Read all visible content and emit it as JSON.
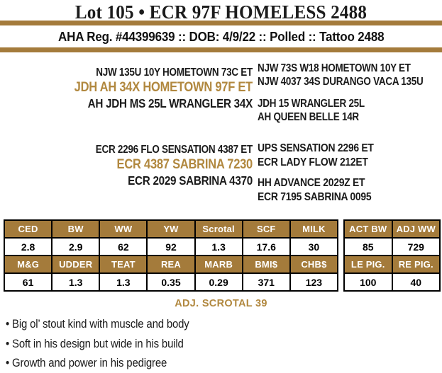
{
  "header": {
    "title": "Lot 105 • ECR 97F HOMELESS 2488",
    "reg_line": "AHA Reg. #44399639 :: DOB: 4/9/22 :: Polled :: Tattoo 2488"
  },
  "colors": {
    "accent_gold": "#a47b3b",
    "gold_text": "#b1883f",
    "table_border": "#000000",
    "header_text_on_gold": "#ffffff"
  },
  "pedigree": {
    "sire_group": {
      "grandsire_line": "NJW 135U 10Y HOMETOWN 73C ET",
      "name": "JDH AH 34X HOMETOWN 97F ET",
      "granddam_line": "AH JDH MS 25L WRANGLER 34X",
      "ancestors": [
        "NJW 73S W18 HOMETOWN 10Y ET",
        "NJW 4037 34S DURANGO VACA 135U",
        "JDH 15 WRANGLER 25L",
        "AH QUEEN BELLE 14R"
      ]
    },
    "dam_group": {
      "grandsire_line": "ECR 2296 FLO SENSATION 4387 ET",
      "name": "ECR 4387 SABRINA 7230",
      "granddam_line": "ECR 2029 SABRINA 4370",
      "ancestors": [
        "UPS SENSATION 2296 ET",
        "ECR LADY FLOW 212ET",
        "HH ADVANCE 2029Z ET",
        "ECR 7195 SABRINA 0095"
      ]
    }
  },
  "epd_table": {
    "rows": [
      {
        "type": "header",
        "cells": [
          "CED",
          "BW",
          "WW",
          "YW",
          "Scrotal",
          "SCF",
          "MILK"
        ]
      },
      {
        "type": "value",
        "cells": [
          "2.8",
          "2.9",
          "62",
          "92",
          "1.3",
          "17.6",
          "30"
        ]
      },
      {
        "type": "header",
        "cells": [
          "M&G",
          "UDDER",
          "TEAT",
          "REA",
          "MARB",
          "BMI$",
          "CHB$"
        ]
      },
      {
        "type": "value",
        "cells": [
          "61",
          "1.3",
          "1.3",
          "0.35",
          "0.29",
          "371",
          "123"
        ]
      }
    ]
  },
  "side_table": {
    "rows": [
      {
        "type": "header",
        "cells": [
          "ACT BW",
          "ADJ WW"
        ]
      },
      {
        "type": "value",
        "cells": [
          "85",
          "729"
        ]
      },
      {
        "type": "header",
        "cells": [
          "LE PIG.",
          "RE PIG."
        ]
      },
      {
        "type": "value",
        "cells": [
          "100",
          "40"
        ]
      }
    ]
  },
  "adj_scrotal_label": "ADJ. SCROTAL 39",
  "notes": [
    "Big ol’ stout kind with muscle and body",
    "Soft in his design but wide in his build",
    "Growth and power in his pedigree"
  ]
}
